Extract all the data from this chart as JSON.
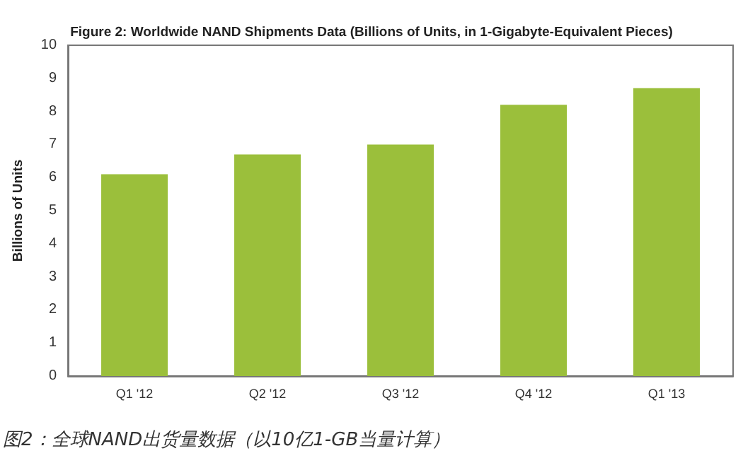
{
  "chart_data": {
    "type": "bar",
    "title": "Figure 2: Worldwide NAND Shipments Data (Billions of Units, in 1-Gigabyte-Equivalent Pieces)",
    "ylabel": "Billions of Units",
    "categories": [
      "Q1 '12",
      "Q2 '12",
      "Q3 '12",
      "Q4 '12",
      "Q1 '13"
    ],
    "values": [
      6.1,
      6.7,
      7.0,
      8.2,
      8.7
    ],
    "color": "#9bbf3b",
    "ylim": [
      0,
      10
    ],
    "yticks": [
      0,
      1,
      2,
      3,
      4,
      5,
      6,
      7,
      8,
      9,
      10
    ],
    "grid": false,
    "annotations": [
      "图2：全球NAND出货量数据（以10亿1-GB当量计算）"
    ]
  }
}
